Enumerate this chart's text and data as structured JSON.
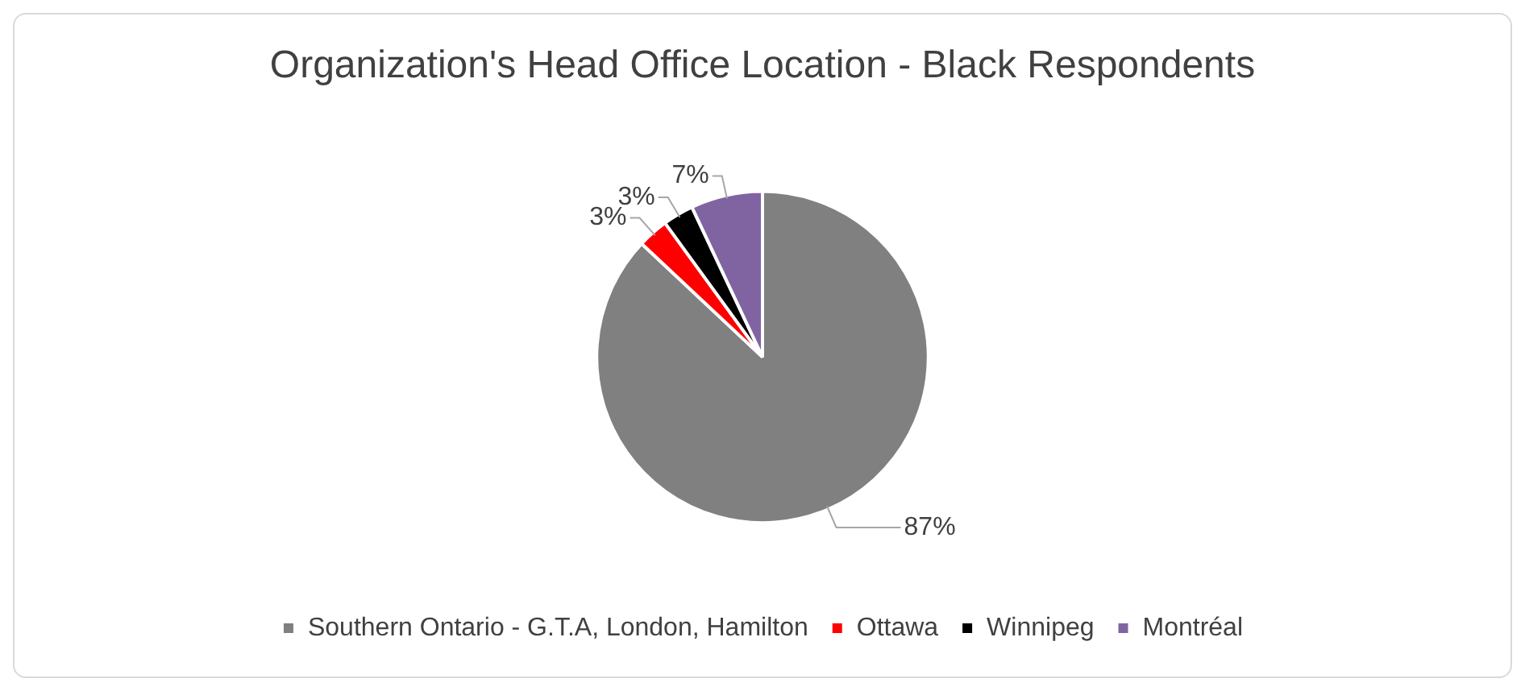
{
  "chart_data": {
    "type": "pie",
    "title": "Organization's Head Office Location - Black Respondents",
    "categories": [
      "Southern Ontario - G.T.A, London, Hamilton",
      "Ottawa",
      "Winnipeg",
      "Montréal"
    ],
    "values": [
      87,
      3,
      3,
      7
    ],
    "colors": [
      "#808080",
      "#ff0000",
      "#000000",
      "#8064a2"
    ],
    "value_labels": [
      "87%",
      "3%",
      "3%",
      "7%"
    ],
    "legend": "bottom"
  }
}
